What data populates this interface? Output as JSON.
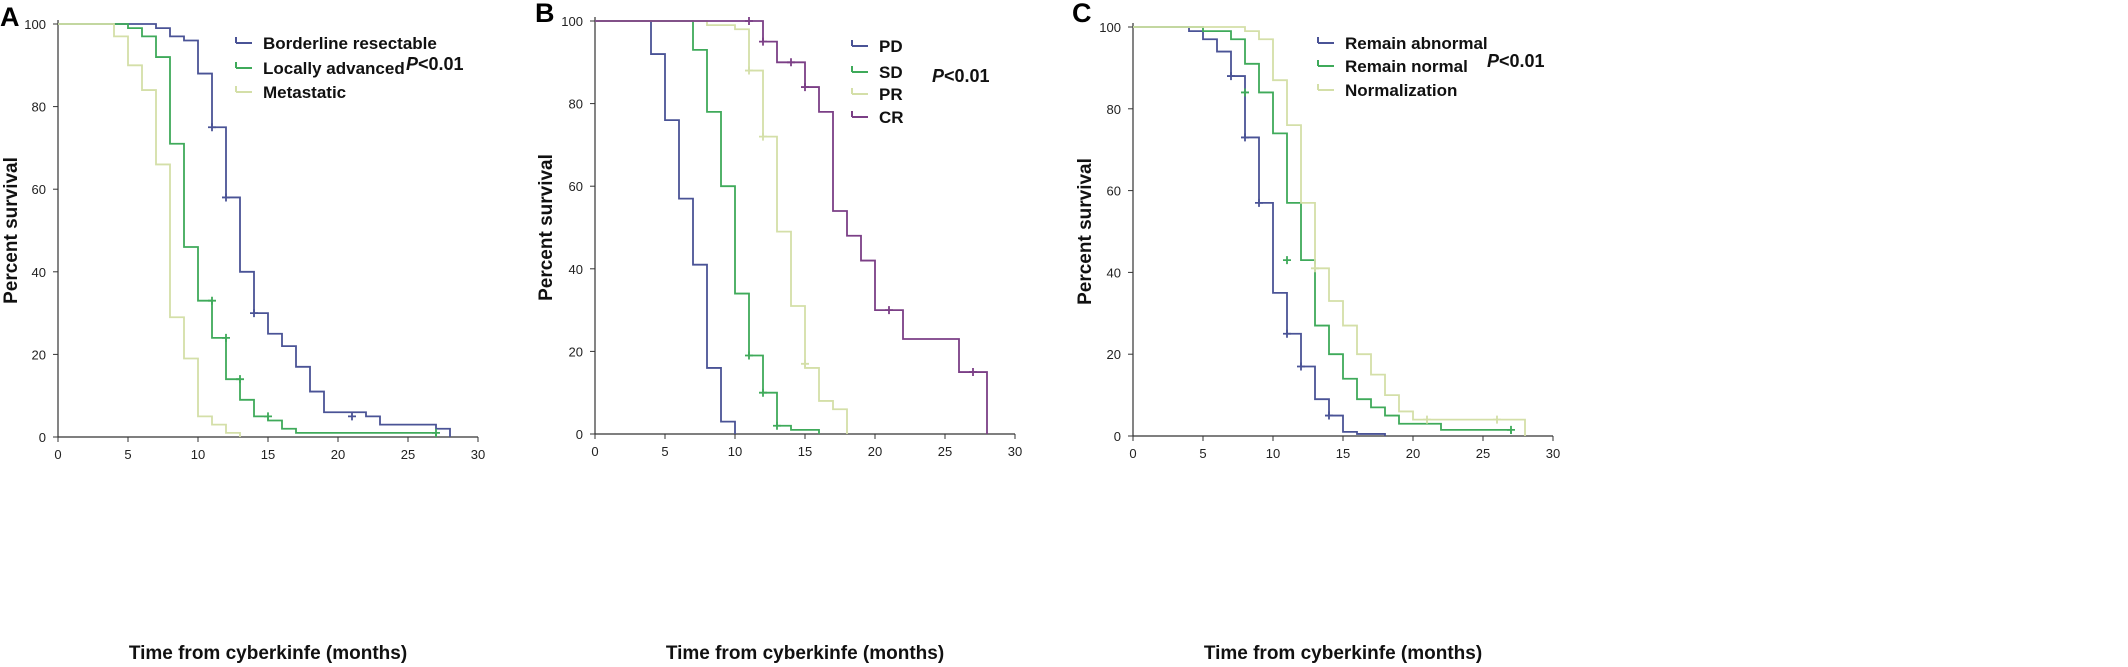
{
  "chart_data": [
    {
      "panel_label": "A",
      "type": "line",
      "xlabel": "Time from cyberkinfe (months)",
      "ylabel": "Percent survival",
      "xlim": [
        0,
        30
      ],
      "ylim": [
        0,
        100
      ],
      "xticks": [
        "0",
        "5",
        "10",
        "15",
        "20",
        "25",
        "30"
      ],
      "yticks": [
        "0",
        "20",
        "40",
        "60",
        "80",
        "100"
      ],
      "annotation": {
        "italic": "P",
        "rest": "<0.01"
      },
      "legend_position": "top-right",
      "series": [
        {
          "name": "Borderline resectable",
          "color": "#4a5396",
          "steps": [
            [
              0,
              100
            ],
            [
              7,
              99
            ],
            [
              8,
              97
            ],
            [
              9,
              96
            ],
            [
              10,
              88
            ],
            [
              11,
              75
            ],
            [
              12,
              58
            ],
            [
              13,
              40
            ],
            [
              14,
              30
            ],
            [
              15,
              25
            ],
            [
              16,
              22
            ],
            [
              17,
              17
            ],
            [
              18,
              11
            ],
            [
              19,
              6
            ],
            [
              22,
              5
            ],
            [
              23,
              3
            ],
            [
              27,
              2
            ],
            [
              28,
              0
            ]
          ],
          "censored": [
            [
              11,
              75
            ],
            [
              12,
              58
            ],
            [
              14,
              30
            ],
            [
              21,
              5
            ]
          ]
        },
        {
          "name": "Locally advanced",
          "color": "#3faa5a",
          "steps": [
            [
              0,
              100
            ],
            [
              5,
              99
            ],
            [
              6,
              97
            ],
            [
              7,
              92
            ],
            [
              8,
              71
            ],
            [
              9,
              46
            ],
            [
              10,
              33
            ],
            [
              11,
              24
            ],
            [
              12,
              14
            ],
            [
              13,
              9
            ],
            [
              14,
              5
            ],
            [
              15,
              4
            ],
            [
              16,
              2
            ],
            [
              17,
              1
            ],
            [
              27,
              0
            ]
          ],
          "censored": [
            [
              11,
              33
            ],
            [
              12,
              24
            ],
            [
              13,
              14
            ],
            [
              15,
              5
            ],
            [
              27,
              1
            ]
          ]
        },
        {
          "name": "Metastatic",
          "color": "#d4dfa8",
          "steps": [
            [
              0,
              100
            ],
            [
              4,
              97
            ],
            [
              5,
              90
            ],
            [
              6,
              84
            ],
            [
              7,
              66
            ],
            [
              8,
              29
            ],
            [
              9,
              19
            ],
            [
              10,
              5
            ],
            [
              11,
              3
            ],
            [
              12,
              1
            ],
            [
              13,
              0
            ]
          ],
          "censored": []
        }
      ]
    },
    {
      "panel_label": "B",
      "type": "line",
      "xlabel": "Time from cyberkinfe (months)",
      "ylabel": "Percent survival",
      "xlim": [
        0,
        30
      ],
      "ylim": [
        0,
        100
      ],
      "xticks": [
        "0",
        "5",
        "10",
        "15",
        "20",
        "25",
        "30"
      ],
      "yticks": [
        "0",
        "20",
        "40",
        "60",
        "80",
        "100"
      ],
      "annotation": {
        "italic": "P",
        "rest": "<0.01"
      },
      "legend_position": "top-right",
      "series": [
        {
          "name": "PD",
          "color": "#4a5396",
          "steps": [
            [
              0,
              100
            ],
            [
              4,
              92
            ],
            [
              5,
              76
            ],
            [
              6,
              57
            ],
            [
              7,
              41
            ],
            [
              8,
              16
            ],
            [
              9,
              3
            ],
            [
              10,
              0
            ]
          ],
          "censored": []
        },
        {
          "name": "SD",
          "color": "#3faa5a",
          "steps": [
            [
              0,
              100
            ],
            [
              7,
              93
            ],
            [
              8,
              78
            ],
            [
              9,
              60
            ],
            [
              10,
              34
            ],
            [
              11,
              19
            ],
            [
              12,
              10
            ],
            [
              13,
              2
            ],
            [
              14,
              1
            ],
            [
              16,
              0
            ]
          ],
          "censored": [
            [
              11,
              19
            ],
            [
              12,
              10
            ],
            [
              13,
              2
            ]
          ]
        },
        {
          "name": "PR",
          "color": "#d4dfa8",
          "steps": [
            [
              0,
              100
            ],
            [
              8,
              99
            ],
            [
              10,
              98
            ],
            [
              11,
              88
            ],
            [
              12,
              72
            ],
            [
              13,
              49
            ],
            [
              14,
              31
            ],
            [
              15,
              16
            ],
            [
              16,
              8
            ],
            [
              17,
              6
            ],
            [
              18,
              0
            ]
          ],
          "censored": [
            [
              11,
              88
            ],
            [
              12,
              72
            ],
            [
              15,
              17
            ]
          ]
        },
        {
          "name": "CR",
          "color": "#7b3f86",
          "steps": [
            [
              0,
              100
            ],
            [
              12,
              95
            ],
            [
              13,
              90
            ],
            [
              15,
              84
            ],
            [
              16,
              78
            ],
            [
              17,
              54
            ],
            [
              18,
              48
            ],
            [
              19,
              42
            ],
            [
              20,
              30
            ],
            [
              22,
              23
            ],
            [
              26,
              15
            ],
            [
              28,
              0
            ]
          ],
          "censored": [
            [
              11,
              100
            ],
            [
              12,
              95
            ],
            [
              14,
              90
            ],
            [
              15,
              84
            ],
            [
              21,
              30
            ],
            [
              27,
              15
            ]
          ]
        }
      ]
    },
    {
      "panel_label": "C",
      "type": "line",
      "xlabel": "Time from cyberkinfe (months)",
      "ylabel": "Percent survival",
      "xlim": [
        0,
        30
      ],
      "ylim": [
        0,
        100
      ],
      "xticks": [
        "0",
        "5",
        "10",
        "15",
        "20",
        "25",
        "30"
      ],
      "yticks": [
        "0",
        "20",
        "40",
        "60",
        "80",
        "100"
      ],
      "annotation": {
        "italic": "P",
        "rest": "<0.01"
      },
      "legend_position": "top-right",
      "series": [
        {
          "name": "Remain abnormal",
          "color": "#4a5396",
          "steps": [
            [
              0,
              100
            ],
            [
              4,
              99
            ],
            [
              5,
              97
            ],
            [
              6,
              94
            ],
            [
              7,
              88
            ],
            [
              8,
              73
            ],
            [
              9,
              57
            ],
            [
              10,
              35
            ],
            [
              11,
              25
            ],
            [
              12,
              17
            ],
            [
              13,
              9
            ],
            [
              14,
              5
            ],
            [
              15,
              1
            ],
            [
              16,
              0.5
            ],
            [
              18,
              0
            ]
          ],
          "censored": [
            [
              7,
              88
            ],
            [
              8,
              73
            ],
            [
              9,
              57
            ],
            [
              11,
              25
            ],
            [
              12,
              17
            ],
            [
              14,
              5
            ]
          ]
        },
        {
          "name": "Remain normal",
          "color": "#3faa5a",
          "steps": [
            [
              0,
              100
            ],
            [
              5,
              99
            ],
            [
              7,
              97
            ],
            [
              8,
              91
            ],
            [
              9,
              84
            ],
            [
              10,
              74
            ],
            [
              11,
              57
            ],
            [
              12,
              43
            ],
            [
              13,
              27
            ],
            [
              14,
              20
            ],
            [
              15,
              14
            ],
            [
              16,
              9
            ],
            [
              17,
              7
            ],
            [
              18,
              5
            ],
            [
              19,
              3
            ],
            [
              22,
              1.5
            ],
            [
              27,
              0.5
            ]
          ],
          "censored": [
            [
              8,
              84
            ],
            [
              11,
              43
            ],
            [
              27,
              1.5
            ]
          ]
        },
        {
          "name": "Normalization",
          "color": "#d4dfa8",
          "steps": [
            [
              0,
              100
            ],
            [
              8,
              99
            ],
            [
              9,
              97
            ],
            [
              10,
              87
            ],
            [
              11,
              76
            ],
            [
              12,
              57
            ],
            [
              13,
              41
            ],
            [
              14,
              33
            ],
            [
              15,
              27
            ],
            [
              16,
              20
            ],
            [
              17,
              15
            ],
            [
              18,
              10
            ],
            [
              19,
              6
            ],
            [
              20,
              4
            ],
            [
              28,
              0
            ]
          ],
          "censored": [
            [
              13,
              41
            ],
            [
              21,
              4
            ],
            [
              26,
              4
            ]
          ]
        }
      ]
    }
  ]
}
